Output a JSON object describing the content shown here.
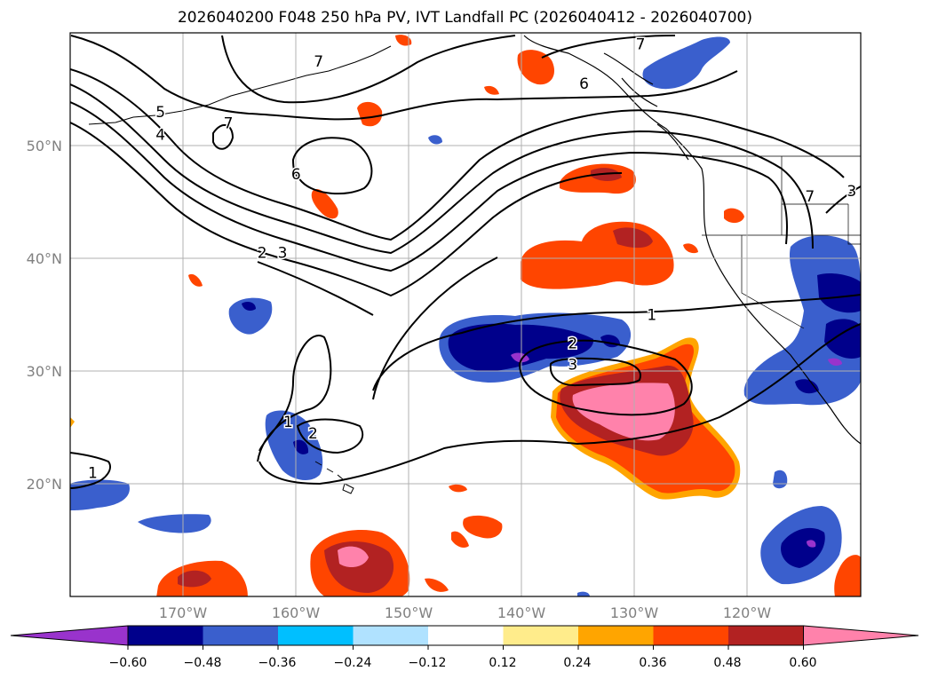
{
  "title": "2026040200 F048 250 hPa PV, IVT Landfall PC (2026040412 - 2026040700)",
  "map": {
    "lon_range": [
      -180,
      -110
    ],
    "lat_range": [
      10,
      60
    ],
    "lat_ticks": [
      {
        "value": 50,
        "label": "50°N"
      },
      {
        "value": 40,
        "label": "40°N"
      },
      {
        "value": 30,
        "label": "30°N"
      },
      {
        "value": 20,
        "label": "20°N"
      }
    ],
    "lon_ticks": [
      {
        "value": -170,
        "label": "170°W"
      },
      {
        "value": -160,
        "label": "160°W"
      },
      {
        "value": -150,
        "label": "150°W"
      },
      {
        "value": -140,
        "label": "140°W"
      },
      {
        "value": -130,
        "label": "130°W"
      },
      {
        "value": -120,
        "label": "120°W"
      }
    ],
    "grid": true
  },
  "colorbar": {
    "orientation": "horizontal",
    "extend": "both",
    "colors": [
      "#9933cc",
      "#00008b",
      "#3a5fcd",
      "#00bfff",
      "#b0e2ff",
      "#ffffff",
      "#ffec8b",
      "#ffa500",
      "#ff4500",
      "#b22222",
      "#ff82ab"
    ],
    "tick_labels": [
      "−0.60",
      "−0.48",
      "−0.36",
      "−0.24",
      "−0.12",
      "0.12",
      "0.24",
      "0.36",
      "0.48",
      "0.60"
    ]
  },
  "contour_labels": [
    {
      "text": "7",
      "lon": -158.0,
      "lat": 57.5
    },
    {
      "text": "7",
      "lon": -129.5,
      "lat": 59.0
    },
    {
      "text": "7",
      "lon": -166.0,
      "lat": 52.0
    },
    {
      "text": "7",
      "lon": -114.5,
      "lat": 45.5
    },
    {
      "text": "6",
      "lon": -134.5,
      "lat": 55.5
    },
    {
      "text": "6",
      "lon": -160.0,
      "lat": 47.5
    },
    {
      "text": "5",
      "lon": -172.0,
      "lat": 53.0
    },
    {
      "text": "4",
      "lon": -172.0,
      "lat": 51.0
    },
    {
      "text": "3",
      "lon": -110.8,
      "lat": 46.0
    },
    {
      "text": "2",
      "lon": -163.0,
      "lat": 40.5
    },
    {
      "text": "3",
      "lon": -161.2,
      "lat": 40.5
    },
    {
      "text": "1",
      "lon": -128.5,
      "lat": 35.0
    },
    {
      "text": "2",
      "lon": -135.5,
      "lat": 32.5
    },
    {
      "text": "3",
      "lon": -135.5,
      "lat": 30.6
    },
    {
      "text": "1",
      "lon": -160.7,
      "lat": 25.5
    },
    {
      "text": "2",
      "lon": -158.5,
      "lat": 24.5
    },
    {
      "text": "1",
      "lon": -178.0,
      "lat": 21.0
    }
  ]
}
